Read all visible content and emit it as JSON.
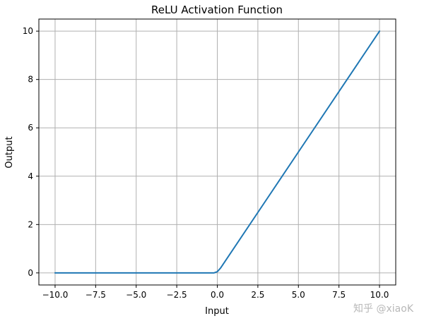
{
  "chart_data": {
    "type": "line",
    "title": "ReLU Activation Function",
    "xlabel": "Input",
    "ylabel": "Output",
    "xlim": [
      -11,
      11
    ],
    "ylim": [
      -0.5,
      10.5
    ],
    "xticks": [
      -10.0,
      -7.5,
      -5.0,
      -2.5,
      0.0,
      2.5,
      5.0,
      7.5,
      10.0
    ],
    "xtick_labels": [
      "−10.0",
      "−7.5",
      "−5.0",
      "−2.5",
      "0.0",
      "2.5",
      "5.0",
      "7.5",
      "10.0"
    ],
    "yticks": [
      0,
      2,
      4,
      6,
      8,
      10
    ],
    "ytick_labels": [
      "0",
      "2",
      "4",
      "6",
      "8",
      "10"
    ],
    "grid": true,
    "series": [
      {
        "color": "#1f77b4",
        "x": [
          -10,
          -5,
          -0.2,
          0,
          0.2,
          5,
          10
        ],
        "y": [
          0,
          0,
          0,
          0.05,
          0.2,
          5,
          10
        ]
      }
    ]
  },
  "watermark": "知乎 @xiaoK"
}
